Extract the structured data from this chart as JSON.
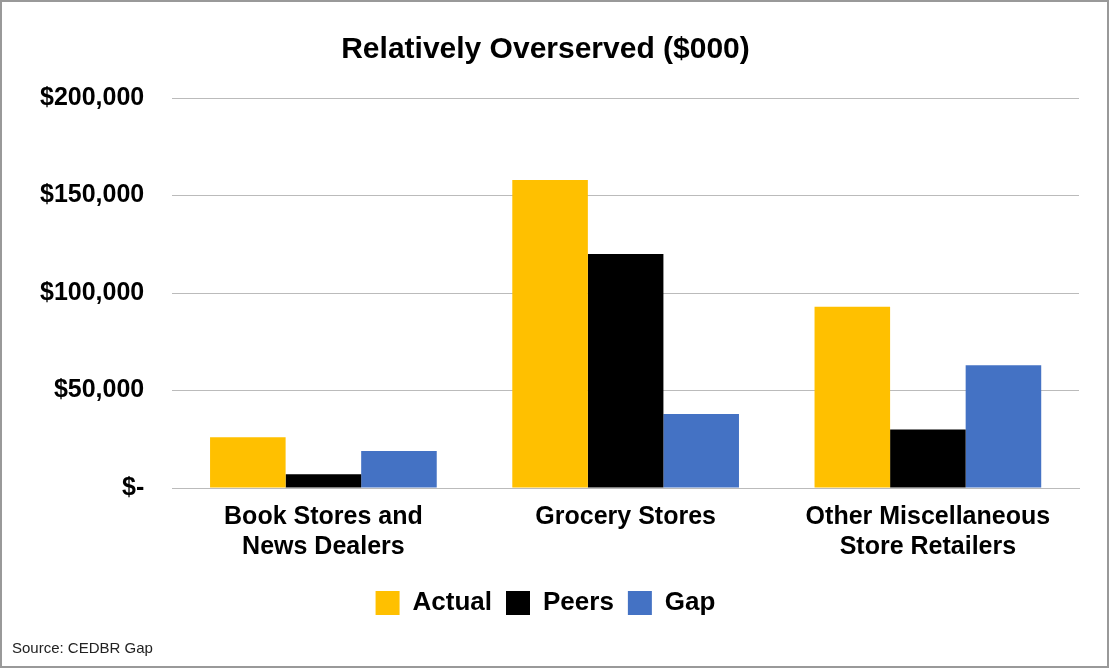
{
  "chart_data": {
    "type": "bar",
    "title": "Relatively Overserved ($000)",
    "categories": [
      "Book Stores and News Dealers",
      "Grocery Stores",
      "Other Miscellaneous Store Retailers"
    ],
    "series": [
      {
        "name": "Actual",
        "color": "#ffc000",
        "values": [
          26000,
          158000,
          93000
        ]
      },
      {
        "name": "Peers",
        "color": "#000000",
        "values": [
          7000,
          120000,
          30000
        ]
      },
      {
        "name": "Gap",
        "color": "#4472c4",
        "values": [
          19000,
          38000,
          63000
        ]
      }
    ],
    "ylim": [
      0,
      200000
    ],
    "yticks": [
      {
        "value": 0,
        "label": "$-"
      },
      {
        "value": 50000,
        "label": "$50,000"
      },
      {
        "value": 100000,
        "label": "$100,000"
      },
      {
        "value": 150000,
        "label": "$150,000"
      },
      {
        "value": 200000,
        "label": "$200,000"
      }
    ],
    "grid": "y",
    "legend": "bottom",
    "annotations": [
      "Source: CEDBR Gap"
    ]
  }
}
